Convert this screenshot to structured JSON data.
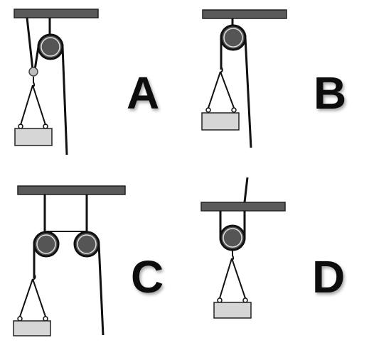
{
  "diagrams": [
    {
      "label": "A"
    },
    {
      "label": "B"
    },
    {
      "label": "C"
    },
    {
      "label": "D"
    }
  ],
  "colors": {
    "beam": "#5a5a5a",
    "pulley": "#555555",
    "rope": "#111111",
    "load": "#d6d6d6",
    "ring": "#bdbdbd",
    "letter": "#111111"
  }
}
